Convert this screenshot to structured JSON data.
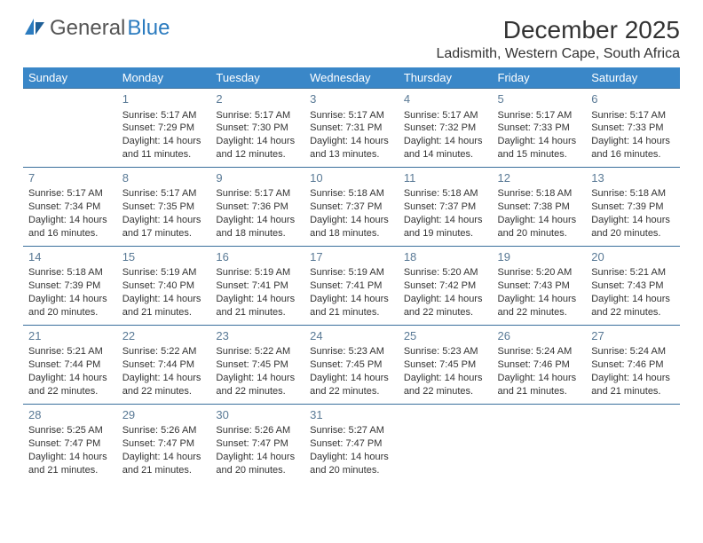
{
  "logo": {
    "part1": "General",
    "part2": "Blue"
  },
  "title": "December 2025",
  "location": "Ladismith, Western Cape, South Africa",
  "colors": {
    "header_bg": "#3a87c8",
    "header_text": "#ffffff",
    "row_border": "#3a6f9c",
    "daynum": "#5a7a96",
    "body_text": "#333333",
    "logo_gray": "#555555",
    "logo_blue": "#2b7bbf",
    "page_bg": "#ffffff"
  },
  "fonts": {
    "title_size": 28,
    "location_size": 16,
    "weekday_size": 13,
    "daynum_size": 13,
    "cell_size": 11
  },
  "weekdays": [
    "Sunday",
    "Monday",
    "Tuesday",
    "Wednesday",
    "Thursday",
    "Friday",
    "Saturday"
  ],
  "weeks": [
    [
      null,
      {
        "n": "1",
        "sr": "5:17 AM",
        "ss": "7:29 PM",
        "dl": "14 hours and 11 minutes."
      },
      {
        "n": "2",
        "sr": "5:17 AM",
        "ss": "7:30 PM",
        "dl": "14 hours and 12 minutes."
      },
      {
        "n": "3",
        "sr": "5:17 AM",
        "ss": "7:31 PM",
        "dl": "14 hours and 13 minutes."
      },
      {
        "n": "4",
        "sr": "5:17 AM",
        "ss": "7:32 PM",
        "dl": "14 hours and 14 minutes."
      },
      {
        "n": "5",
        "sr": "5:17 AM",
        "ss": "7:33 PM",
        "dl": "14 hours and 15 minutes."
      },
      {
        "n": "6",
        "sr": "5:17 AM",
        "ss": "7:33 PM",
        "dl": "14 hours and 16 minutes."
      }
    ],
    [
      {
        "n": "7",
        "sr": "5:17 AM",
        "ss": "7:34 PM",
        "dl": "14 hours and 16 minutes."
      },
      {
        "n": "8",
        "sr": "5:17 AM",
        "ss": "7:35 PM",
        "dl": "14 hours and 17 minutes."
      },
      {
        "n": "9",
        "sr": "5:17 AM",
        "ss": "7:36 PM",
        "dl": "14 hours and 18 minutes."
      },
      {
        "n": "10",
        "sr": "5:18 AM",
        "ss": "7:37 PM",
        "dl": "14 hours and 18 minutes."
      },
      {
        "n": "11",
        "sr": "5:18 AM",
        "ss": "7:37 PM",
        "dl": "14 hours and 19 minutes."
      },
      {
        "n": "12",
        "sr": "5:18 AM",
        "ss": "7:38 PM",
        "dl": "14 hours and 20 minutes."
      },
      {
        "n": "13",
        "sr": "5:18 AM",
        "ss": "7:39 PM",
        "dl": "14 hours and 20 minutes."
      }
    ],
    [
      {
        "n": "14",
        "sr": "5:18 AM",
        "ss": "7:39 PM",
        "dl": "14 hours and 20 minutes."
      },
      {
        "n": "15",
        "sr": "5:19 AM",
        "ss": "7:40 PM",
        "dl": "14 hours and 21 minutes."
      },
      {
        "n": "16",
        "sr": "5:19 AM",
        "ss": "7:41 PM",
        "dl": "14 hours and 21 minutes."
      },
      {
        "n": "17",
        "sr": "5:19 AM",
        "ss": "7:41 PM",
        "dl": "14 hours and 21 minutes."
      },
      {
        "n": "18",
        "sr": "5:20 AM",
        "ss": "7:42 PM",
        "dl": "14 hours and 22 minutes."
      },
      {
        "n": "19",
        "sr": "5:20 AM",
        "ss": "7:43 PM",
        "dl": "14 hours and 22 minutes."
      },
      {
        "n": "20",
        "sr": "5:21 AM",
        "ss": "7:43 PM",
        "dl": "14 hours and 22 minutes."
      }
    ],
    [
      {
        "n": "21",
        "sr": "5:21 AM",
        "ss": "7:44 PM",
        "dl": "14 hours and 22 minutes."
      },
      {
        "n": "22",
        "sr": "5:22 AM",
        "ss": "7:44 PM",
        "dl": "14 hours and 22 minutes."
      },
      {
        "n": "23",
        "sr": "5:22 AM",
        "ss": "7:45 PM",
        "dl": "14 hours and 22 minutes."
      },
      {
        "n": "24",
        "sr": "5:23 AM",
        "ss": "7:45 PM",
        "dl": "14 hours and 22 minutes."
      },
      {
        "n": "25",
        "sr": "5:23 AM",
        "ss": "7:45 PM",
        "dl": "14 hours and 22 minutes."
      },
      {
        "n": "26",
        "sr": "5:24 AM",
        "ss": "7:46 PM",
        "dl": "14 hours and 21 minutes."
      },
      {
        "n": "27",
        "sr": "5:24 AM",
        "ss": "7:46 PM",
        "dl": "14 hours and 21 minutes."
      }
    ],
    [
      {
        "n": "28",
        "sr": "5:25 AM",
        "ss": "7:47 PM",
        "dl": "14 hours and 21 minutes."
      },
      {
        "n": "29",
        "sr": "5:26 AM",
        "ss": "7:47 PM",
        "dl": "14 hours and 21 minutes."
      },
      {
        "n": "30",
        "sr": "5:26 AM",
        "ss": "7:47 PM",
        "dl": "14 hours and 20 minutes."
      },
      {
        "n": "31",
        "sr": "5:27 AM",
        "ss": "7:47 PM",
        "dl": "14 hours and 20 minutes."
      },
      null,
      null,
      null
    ]
  ],
  "labels": {
    "sunrise": "Sunrise:",
    "sunset": "Sunset:",
    "daylight": "Daylight:"
  }
}
